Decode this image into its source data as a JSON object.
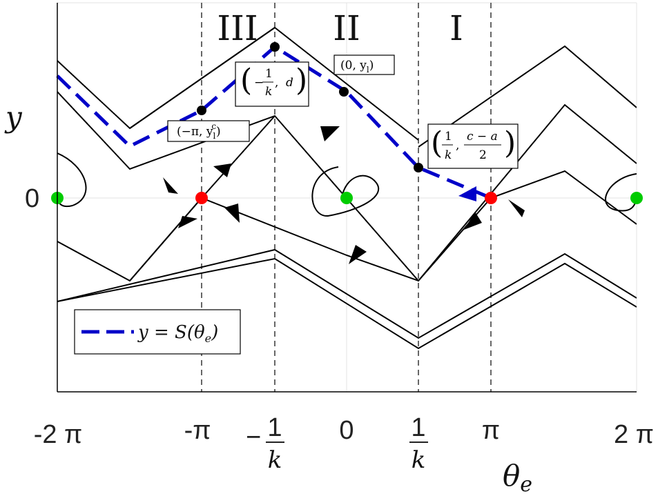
{
  "axes": {
    "x_ticks": [
      "-2 π",
      "-π",
      "0",
      "π",
      "2 π"
    ],
    "x_frac_ticks": [
      {
        "sign": "−",
        "num": "1",
        "den": "k"
      },
      {
        "sign": "",
        "num": "1",
        "den": "k"
      }
    ],
    "y_ticks": [
      "0"
    ],
    "xlabel": "θ",
    "xlabel_sub": "e",
    "ylabel": "y"
  },
  "regions": [
    "III",
    "II",
    "I"
  ],
  "legend": {
    "label": "y = S(θ",
    "label_sub": "e",
    "label_end": ")",
    "line_color": "#0000c8"
  },
  "annotations": {
    "neg_pi": {
      "text": "(−π,  y",
      "sub": "l",
      "sup": "c",
      "end": ")"
    },
    "neg_inv_k": {
      "num": "1",
      "den": "k",
      "sign": "−",
      "second": "d"
    },
    "zero": {
      "text": "(0,  y",
      "sub": "l",
      "end": ")"
    },
    "inv_k": {
      "num1": "1",
      "den1": "k",
      "num2": "c − a",
      "den2": "2"
    }
  },
  "colors": {
    "equilibrium_center": "#00cc00",
    "equilibrium_saddle": "#ff0000",
    "trajectory": "#000000",
    "separatrix": "#0000c8",
    "marked_point": "#000000"
  },
  "chart_data": {
    "type": "phase_portrait",
    "x_range": [
      "-2π",
      "2π"
    ],
    "equilibria": [
      {
        "theta_e": "-2π",
        "y": 0,
        "kind": "center"
      },
      {
        "theta_e": "-π",
        "y": 0,
        "kind": "saddle"
      },
      {
        "theta_e": "0",
        "y": 0,
        "kind": "center"
      },
      {
        "theta_e": "π",
        "y": 0,
        "kind": "saddle"
      },
      {
        "theta_e": "2π",
        "y": 0,
        "kind": "center"
      }
    ],
    "dashed_verticals": [
      "-π",
      "-1/k",
      "0",
      "1/k",
      "π"
    ],
    "marked_points": [
      "(-π, y_l^c)",
      "(-1/k, d)",
      "(0, y_l)",
      "(1/k, (c-a)/2)"
    ],
    "separatrix_label": "y = S(θ_e)",
    "grid": true
  }
}
